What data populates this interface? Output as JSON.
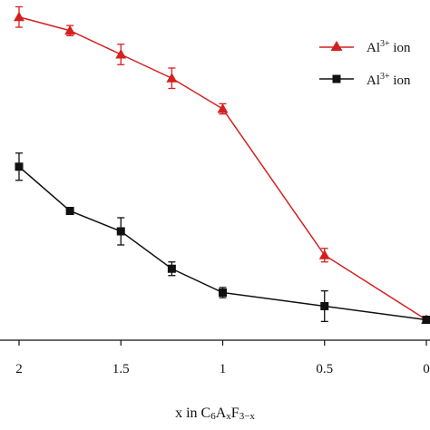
{
  "chart_data": {
    "type": "line",
    "x_ticks": [
      "2",
      "1.5",
      "1",
      "0.5",
      "0"
    ],
    "x": [
      2.0,
      1.75,
      1.5,
      1.25,
      1.0,
      0.5,
      0.0
    ],
    "xlim": [
      2.0,
      0.0
    ],
    "xlabel": {
      "prefix": "x in C",
      "sub1": "6",
      "mid1": "A",
      "sub2": "x",
      "mid2": "F",
      "sub3": "3−x"
    },
    "ylabel": "",
    "grid": false,
    "legend_placement": "top-right",
    "series": [
      {
        "name": "Al³⁺ ion",
        "legend_main": "Al",
        "legend_sup": "3+",
        "legend_rest": " ion",
        "color": "#d42020",
        "marker": "triangle",
        "values": [
          0.95,
          0.91,
          0.84,
          0.77,
          0.68,
          0.25,
          0.06
        ],
        "errors": [
          0.03,
          0.015,
          0.03,
          0.03,
          0.015,
          0.02,
          0.01
        ]
      },
      {
        "name": "Al³⁺ ion",
        "legend_main": "Al",
        "legend_sup": "3+",
        "legend_rest": " ion",
        "color": "#111111",
        "marker": "square",
        "values": [
          0.51,
          0.38,
          0.32,
          0.21,
          0.14,
          0.1,
          0.06
        ],
        "errors": [
          0.04,
          0.01,
          0.04,
          0.02,
          0.015,
          0.045,
          0.01
        ]
      }
    ]
  }
}
